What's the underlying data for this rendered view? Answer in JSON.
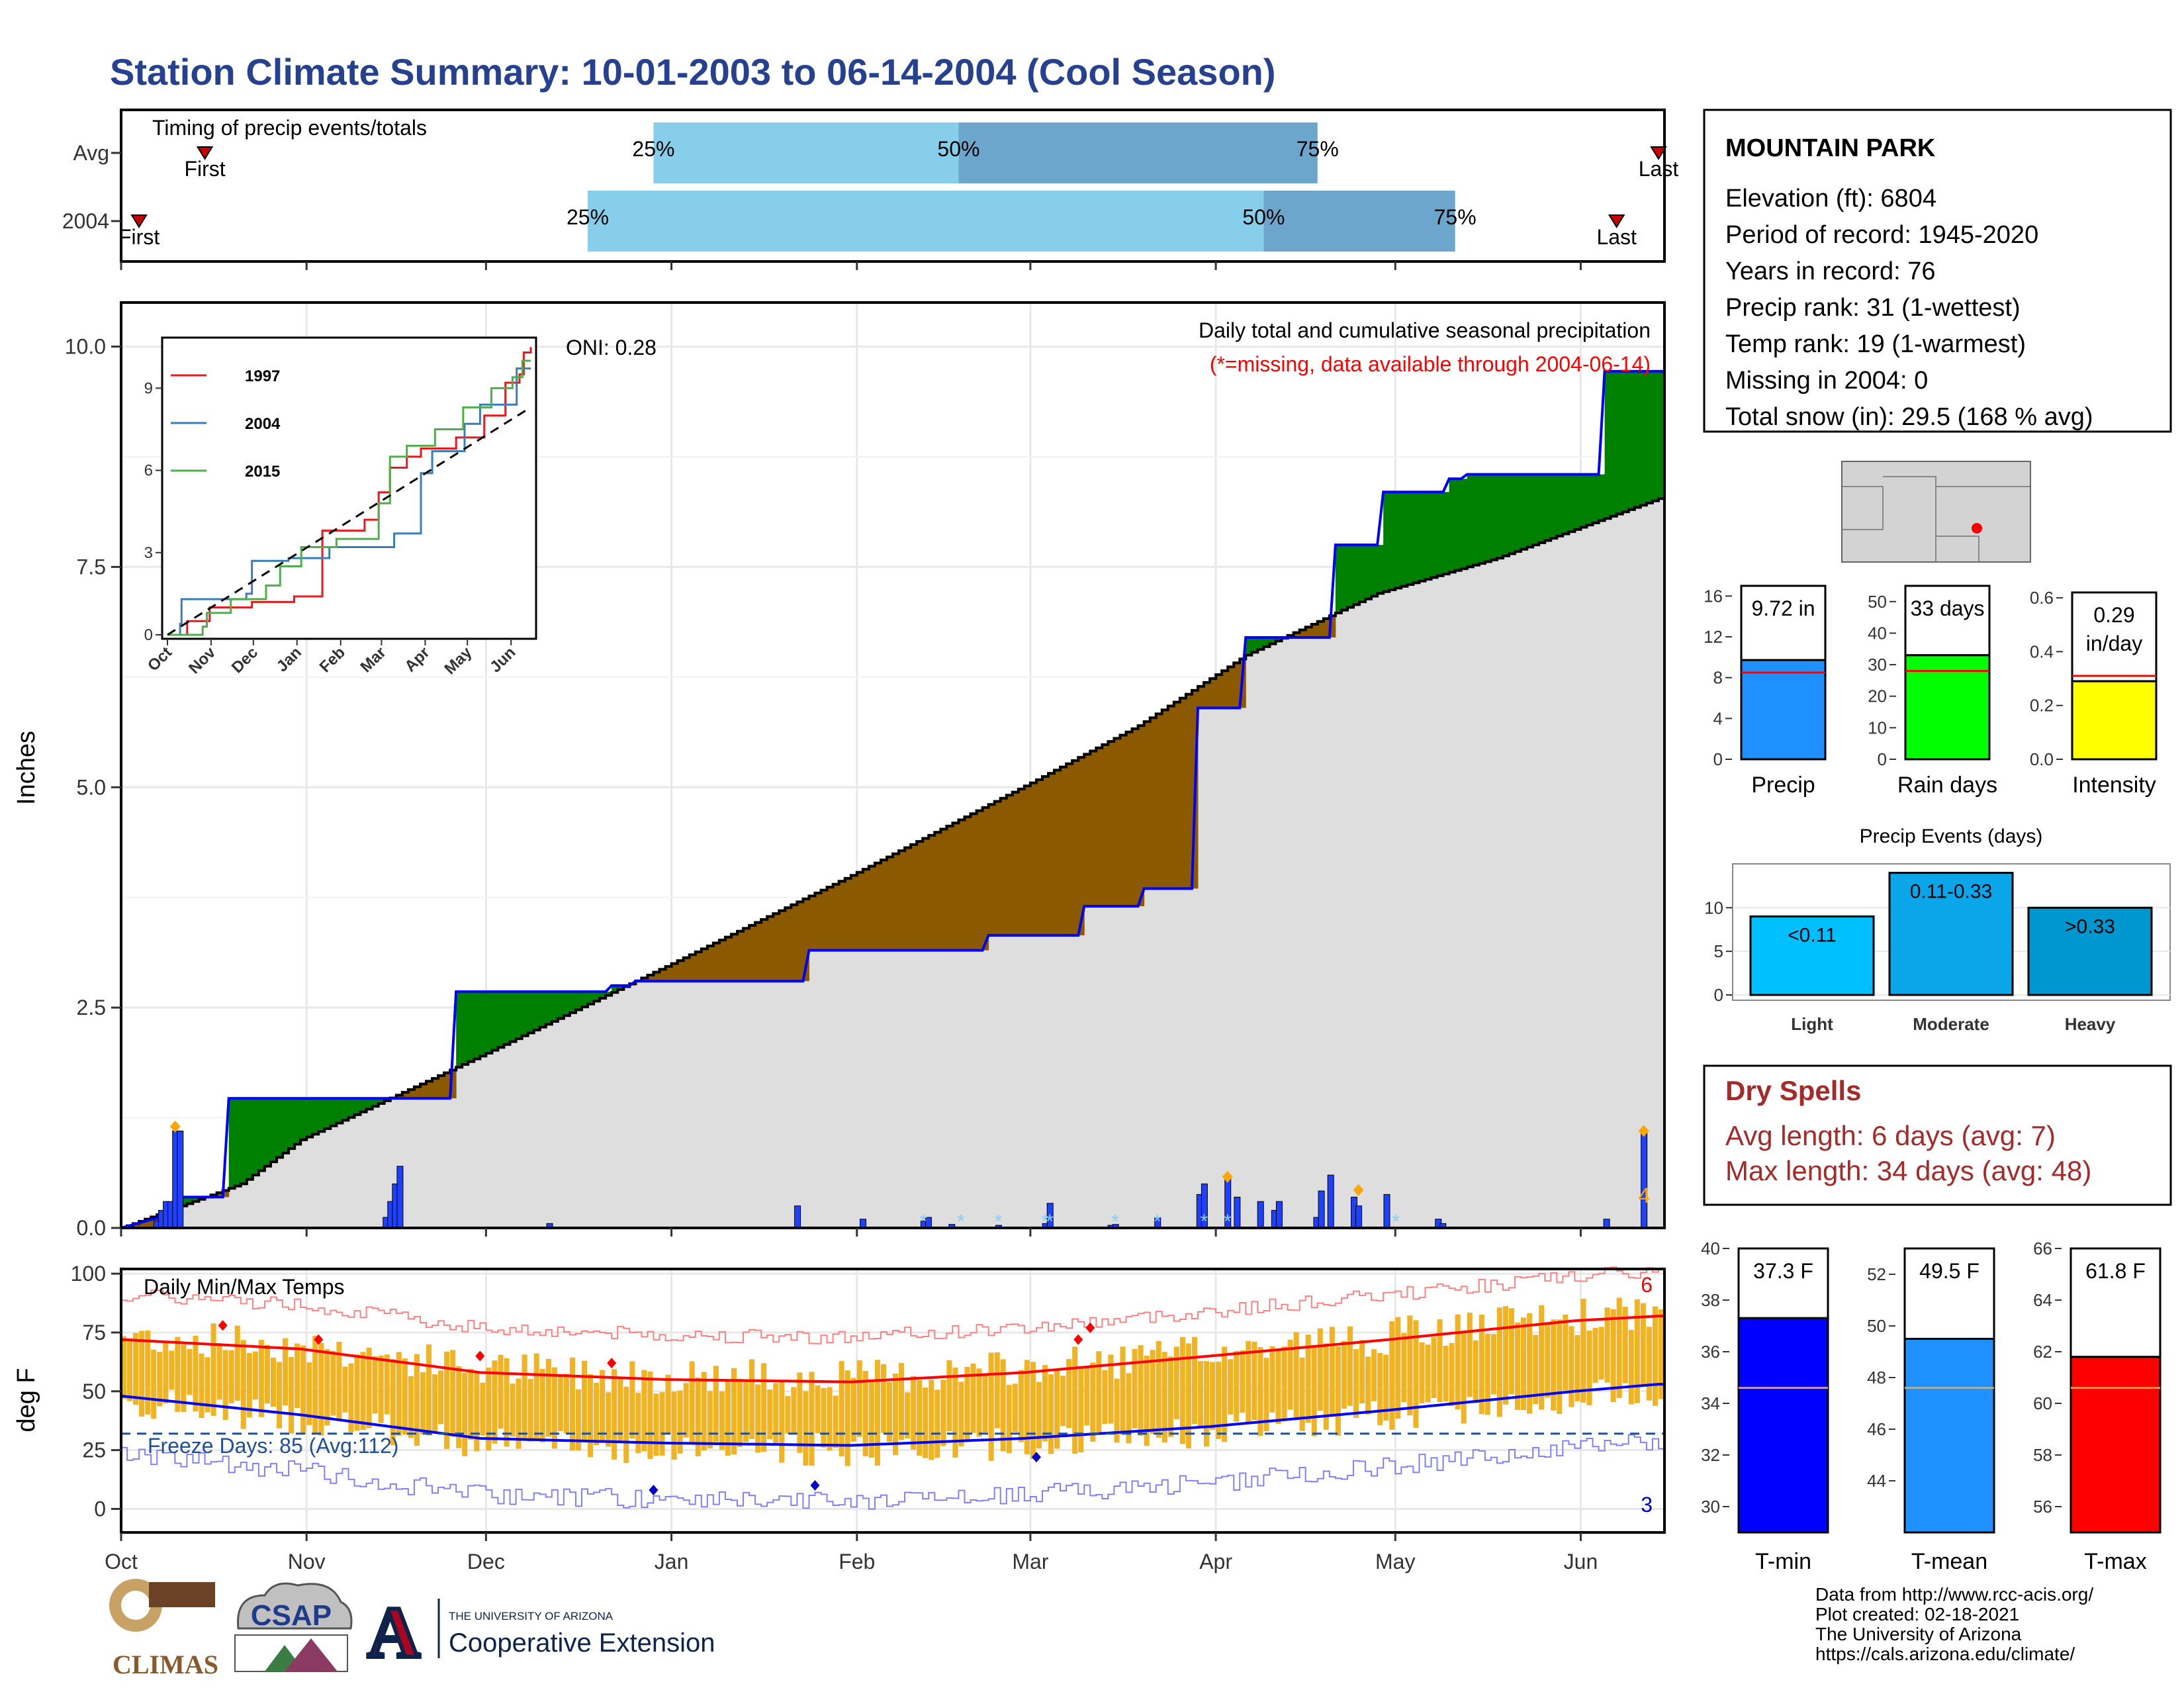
{
  "title": "Station Climate Summary: 10-01-2003 to 06-14-2004 (Cool Season)",
  "timing": {
    "heading": "Timing of precip events/totals",
    "rows": [
      {
        "label": "Avg",
        "first_day": 14,
        "last_day": 257,
        "p25_day": 89,
        "p50_day": 140,
        "p75_day": 200,
        "first_label": "First",
        "last_label": "Last",
        "p25_label": "25%",
        "p50_label": "50%",
        "p75_label": "75%"
      },
      {
        "label": "2004",
        "first_day": 3,
        "last_day": 250,
        "p25_day": 78,
        "p50_day": 191,
        "p75_day": 223,
        "first_label": "First",
        "last_label": "Last",
        "p25_label": "25%",
        "p50_label": "50%",
        "p75_label": "75%"
      }
    ]
  },
  "station": {
    "name": "MOUNTAIN PARK",
    "lines": [
      "Elevation (ft): 6804",
      "Period of record: 1945-2020",
      "Years in record: 76",
      "Precip rank: 31 (1-wettest)",
      "Temp rank: 19 (1-warmest)",
      "Missing in 2004: 0",
      "Total snow (in): 29.5 (168 % avg)"
    ]
  },
  "months": [
    "Oct",
    "Nov",
    "Dec",
    "Jan",
    "Feb",
    "Mar",
    "Apr",
    "May",
    "Jun"
  ],
  "precip_panel": {
    "ylabel": "Inches",
    "yticks": [
      "0.0",
      "2.5",
      "5.0",
      "7.5",
      "10.0"
    ],
    "oni": "ONI: 0.28",
    "caption": "Daily total and cumulative seasonal precipitation",
    "missing_note": "(*=missing, data available through 2004-06-14)",
    "corner_count": "4",
    "colors": {
      "above": "#008000",
      "below": "#8B5A00",
      "avg_fill": "#DEDEDE",
      "line": "#0000FF",
      "bars": "#1E40FF",
      "extreme": "#FFA500",
      "snow": "#87CEFA"
    }
  },
  "inset": {
    "legend": [
      "1997",
      "2004",
      "2015"
    ],
    "colors": [
      "#E41A1C",
      "#377EB8",
      "#4DAF4A"
    ],
    "yticks": [
      "0",
      "3",
      "6",
      "9"
    ],
    "xticks": [
      "Oct",
      "Nov",
      "Dec",
      "Jan",
      "Feb",
      "Mar",
      "Apr",
      "May",
      "Jun"
    ]
  },
  "temp_panel": {
    "ylabel": "deg F",
    "heading": "Daily Min/Max Temps",
    "freeze": "Freeze Days: 85 (Avg:112)",
    "yticks": [
      "0",
      "25",
      "50",
      "75",
      "100"
    ],
    "count_high": "6",
    "count_low": "3"
  },
  "summary_bars": [
    {
      "name": "Precip",
      "value": 9.72,
      "avg": 8.5,
      "label": "9.72 in",
      "ylim": [
        0,
        17
      ],
      "yticks": [
        "0",
        "4",
        "8",
        "12",
        "16"
      ],
      "color": "#1E90FF"
    },
    {
      "name": "Rain days",
      "value": 33,
      "avg": 28,
      "label": "33 days",
      "ylim": [
        0,
        55
      ],
      "yticks": [
        "0",
        "10",
        "20",
        "30",
        "40",
        "50"
      ],
      "color": "#00FF00"
    },
    {
      "name": "Intensity",
      "value": 0.29,
      "avg": 0.31,
      "label_line1": "0.29",
      "label_line2": "in/day",
      "ylim": [
        0,
        0.62
      ],
      "yticks": [
        "0.0",
        "0.2",
        "0.4",
        "0.6"
      ],
      "color": "#FFFF00"
    }
  ],
  "events": {
    "title": "Precip Events (days)",
    "categories": [
      "Light",
      "Moderate",
      "Heavy"
    ],
    "values": [
      9,
      14,
      10
    ],
    "labels": [
      "<0.11",
      "0.11-0.33",
      ">0.33"
    ],
    "yticks": [
      "0",
      "5",
      "10"
    ],
    "colors": [
      "#00BFFF",
      "#0BA5E9",
      "#0096D0"
    ]
  },
  "dry_spells": {
    "title": "Dry Spells",
    "avg": "Avg length: 6 days (avg: 7)",
    "max": "Max length: 34 days (avg: 48)"
  },
  "temp_bars": [
    {
      "name": "T-min",
      "value": 37.3,
      "avg": 34.6,
      "label": "37.3 F",
      "ylim": [
        29,
        40
      ],
      "yticks": [
        "30",
        "32",
        "34",
        "36",
        "38",
        "40"
      ],
      "color": "#0000FF"
    },
    {
      "name": "T-mean",
      "value": 49.5,
      "avg": 47.6,
      "label": "49.5 F",
      "ylim": [
        42,
        53
      ],
      "yticks": [
        "44",
        "46",
        "48",
        "50",
        "52"
      ],
      "color": "#1E90FF"
    },
    {
      "name": "T-max",
      "value": 61.8,
      "avg": 60.6,
      "label": "61.8 F",
      "ylim": [
        55,
        66
      ],
      "yticks": [
        "56",
        "58",
        "60",
        "62",
        "64",
        "66"
      ],
      "color": "#FF0000"
    }
  ],
  "footer": {
    "lines": [
      "Data from http://www.rcc-acis.org/",
      "Plot created: 02-18-2021",
      "The University of Arizona",
      "https://cals.arizona.edu/climate/"
    ],
    "climas": "CLIMAS",
    "csap": "CSAP",
    "ua_small": "THE UNIVERSITY OF ARIZONA",
    "ua_big": "Cooperative Extension"
  },
  "chart_data": [
    {
      "type": "area",
      "title": "Daily total and cumulative seasonal precipitation",
      "ylabel": "Inches",
      "ylim": [
        0,
        10.5
      ],
      "x_unit": "days since 2003-10-01",
      "series": [
        {
          "name": "2004",
          "x": [
            0,
            8,
            9,
            17,
            18,
            55,
            56,
            81,
            82,
            85,
            86,
            114,
            115,
            144,
            145,
            160,
            161,
            170,
            171,
            179,
            180,
            187,
            188,
            202,
            203,
            210,
            211,
            221,
            222,
            224,
            225,
            247,
            248,
            258
          ],
          "values": [
            0,
            0.15,
            0.35,
            0.35,
            1.47,
            1.47,
            2.68,
            2.68,
            2.75,
            2.75,
            2.8,
            2.8,
            3.15,
            3.15,
            3.32,
            3.32,
            3.65,
            3.65,
            3.85,
            3.85,
            5.9,
            5.9,
            6.7,
            6.7,
            7.75,
            7.75,
            8.35,
            8.35,
            8.5,
            8.5,
            8.55,
            8.55,
            9.72,
            9.72
          ]
        }
      ]
    },
    {
      "type": "line",
      "title": "Daily Min/Max Temps",
      "ylabel": "deg F",
      "ylim": [
        -10,
        100
      ],
      "x_unit": "days since 2003-10-01",
      "series": [
        {
          "name": "avg max",
          "x": [
            0,
            30,
            60,
            91,
            122,
            151,
            182,
            212,
            243,
            257
          ],
          "values": [
            72,
            68,
            58,
            55,
            54,
            58,
            65,
            72,
            80,
            82
          ]
        },
        {
          "name": "avg min",
          "x": [
            0,
            30,
            60,
            91,
            122,
            151,
            182,
            212,
            243,
            257
          ],
          "values": [
            48,
            40,
            30,
            28,
            27,
            30,
            35,
            42,
            50,
            53
          ]
        }
      ]
    }
  ]
}
